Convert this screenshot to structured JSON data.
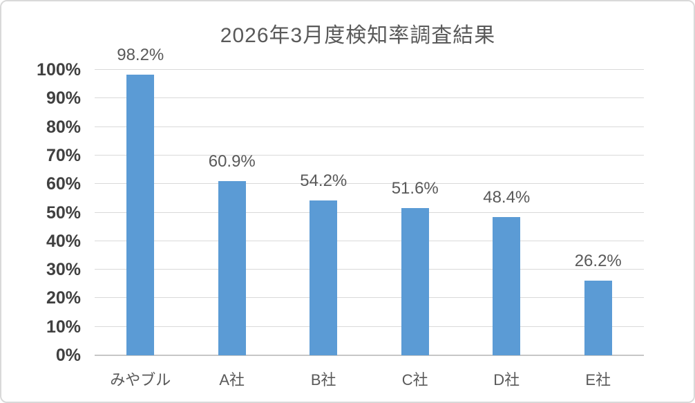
{
  "chart_data": {
    "type": "bar",
    "title": "2026年3月度検知率調査結果",
    "categories": [
      "みやブル",
      "A社",
      "B社",
      "C社",
      "D社",
      "E社"
    ],
    "values": [
      98.2,
      60.9,
      54.2,
      51.6,
      48.4,
      26.2
    ],
    "data_labels": [
      "98.2%",
      "60.9%",
      "54.2%",
      "51.6%",
      "48.4%",
      "26.2%"
    ],
    "xlabel": "",
    "ylabel": "",
    "ylim": [
      0,
      100
    ],
    "y_tick_interval": 10,
    "y_tick_labels": [
      "0%",
      "10%",
      "20%",
      "30%",
      "40%",
      "50%",
      "60%",
      "70%",
      "80%",
      "90%",
      "100%"
    ],
    "grid": true,
    "legend": false,
    "colors": {
      "bar": "#5B9BD5",
      "title_text": "#595959",
      "y_axis_label_text": "#404040",
      "category_label_text": "#595959",
      "data_label_text": "#595959",
      "gridline": "#D9D9D9",
      "axis_line": "#C6C6C6",
      "frame_border": "#D9D9D9"
    }
  }
}
